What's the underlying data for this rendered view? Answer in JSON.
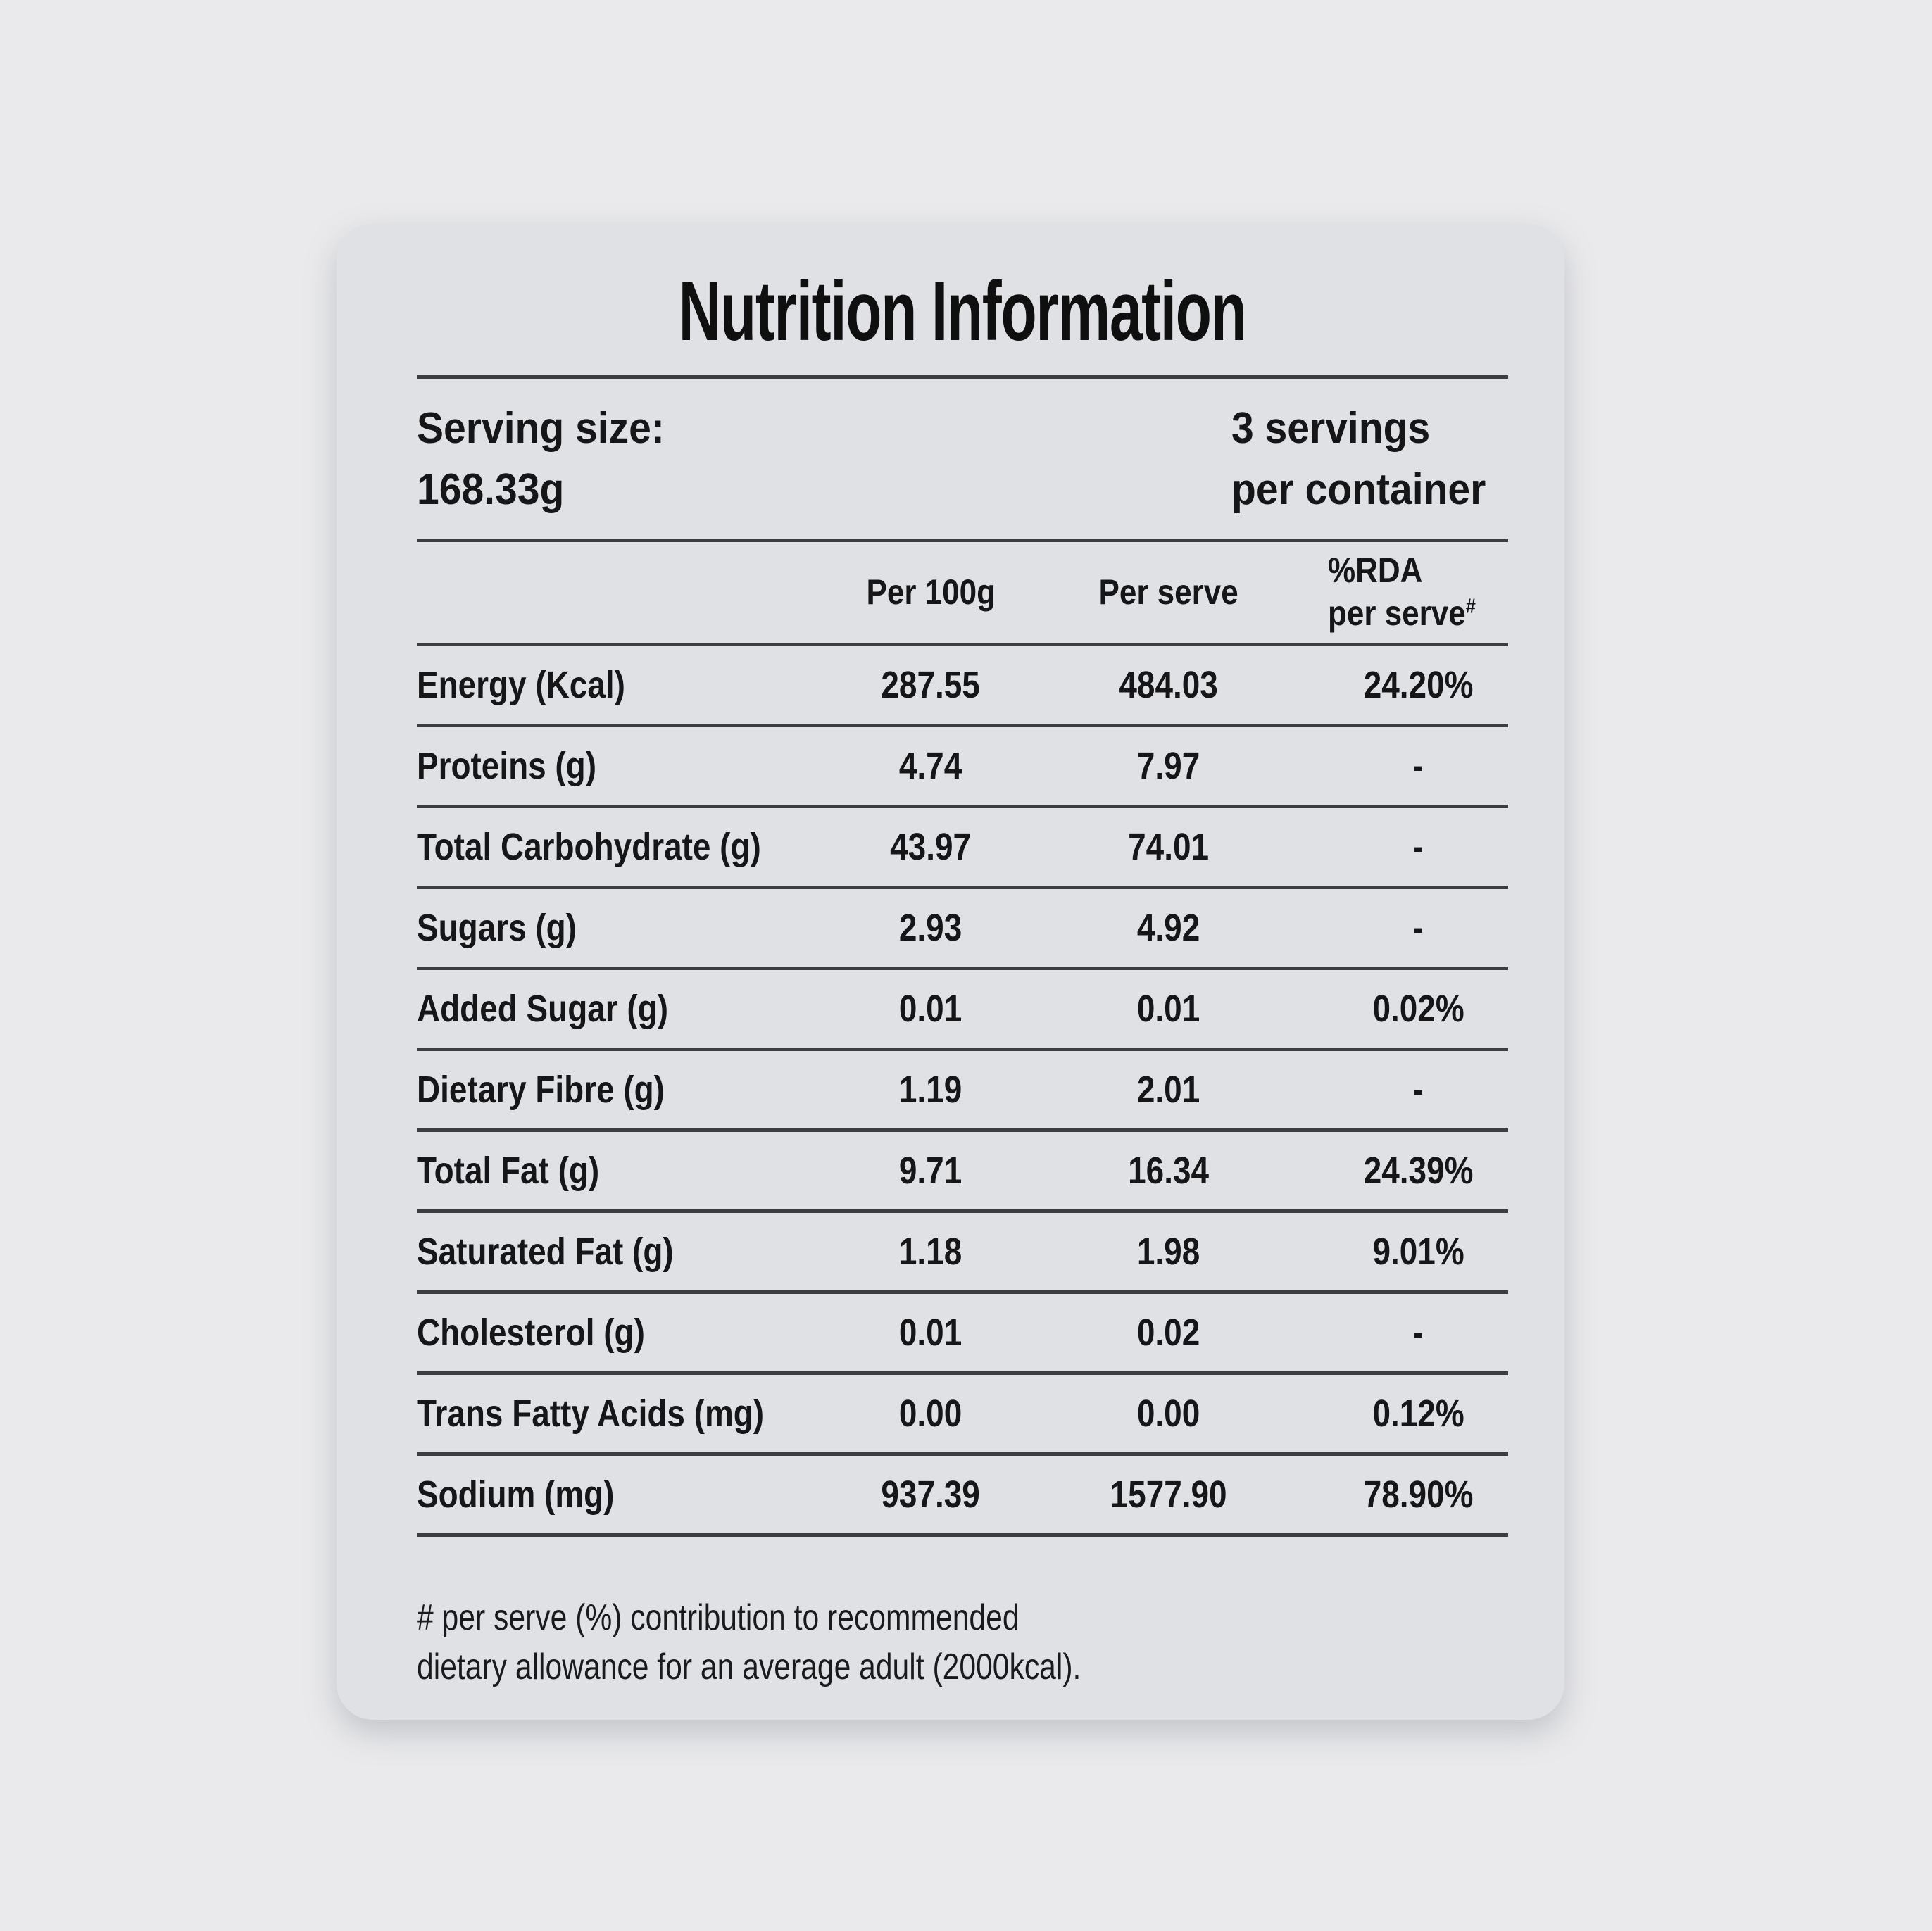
{
  "colors": {
    "page_background": "#eaeaec",
    "card_background": "#dfe1e5",
    "rule_color": "#3b3d40",
    "text_color": "#161618"
  },
  "header": {
    "title": "Nutrition Information"
  },
  "serving": {
    "label": "Serving size:",
    "size": "168.33g",
    "servings_count": "3 servings",
    "servings_unit": "per container"
  },
  "table": {
    "headers": {
      "per_100g": "Per 100g",
      "per_serve": "Per serve",
      "rda_line1": "%RDA",
      "rda_line2": "per serve",
      "rda_sup": "#"
    },
    "rows": [
      {
        "label": "Energy (Kcal)",
        "per100g": "287.55",
        "perserve": "484.03",
        "rda": "24.20%"
      },
      {
        "label": "Proteins (g)",
        "per100g": "4.74",
        "perserve": "7.97",
        "rda": "-"
      },
      {
        "label": "Total Carbohydrate (g)",
        "per100g": "43.97",
        "perserve": "74.01",
        "rda": "-"
      },
      {
        "label": "Sugars (g)",
        "per100g": "2.93",
        "perserve": "4.92",
        "rda": "-"
      },
      {
        "label": "Added Sugar (g)",
        "per100g": "0.01",
        "perserve": "0.01",
        "rda": "0.02%"
      },
      {
        "label": "Dietary Fibre (g)",
        "per100g": "1.19",
        "perserve": "2.01",
        "rda": "-"
      },
      {
        "label": "Total Fat (g)",
        "per100g": "9.71",
        "perserve": "16.34",
        "rda": "24.39%"
      },
      {
        "label": "Saturated Fat (g)",
        "per100g": "1.18",
        "perserve": "1.98",
        "rda": "9.01%"
      },
      {
        "label": "Cholesterol (g)",
        "per100g": "0.01",
        "perserve": "0.02",
        "rda": "-"
      },
      {
        "label": "Trans Fatty Acids (mg)",
        "per100g": "0.00",
        "perserve": "0.00",
        "rda": "0.12%"
      },
      {
        "label": "Sodium (mg)",
        "per100g": "937.39",
        "perserve": "1577.90",
        "rda": "78.90%"
      }
    ]
  },
  "footnote": {
    "line1": "# per serve (%) contribution to recommended",
    "line2": "dietary allowance for an average adult (2000kcal)."
  }
}
